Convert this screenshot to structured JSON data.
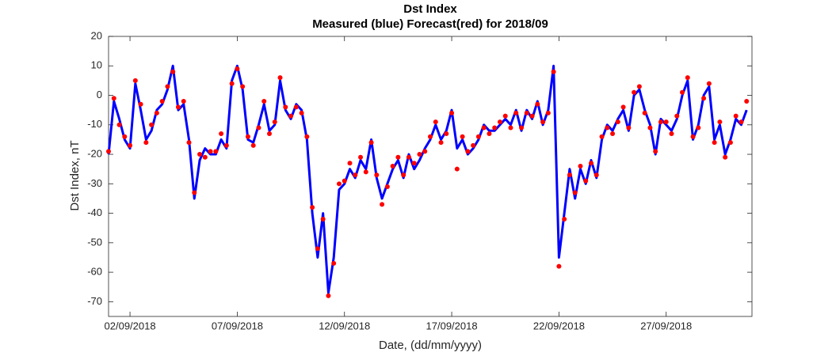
{
  "chart_data": {
    "type": "line",
    "title": "Dst Index",
    "subtitle": "Measured (blue) Forecast(red) for 2018/09",
    "ylabel": "Dst Index, nT",
    "xlabel": "Date, (dd/mm/yyyy)",
    "xlim": [
      1,
      31
    ],
    "ylim": [
      -75,
      20
    ],
    "yticks": [
      -70,
      -60,
      -50,
      -40,
      -30,
      -20,
      -10,
      0,
      10,
      20
    ],
    "xticks": [
      {
        "value": 2,
        "label": "02/09/2018"
      },
      {
        "value": 7,
        "label": "07/09/2018"
      },
      {
        "value": 12,
        "label": "12/09/2018"
      },
      {
        "value": 17,
        "label": "17/09/2018"
      },
      {
        "value": 22,
        "label": "22/09/2018"
      },
      {
        "value": 27,
        "label": "27/09/2018"
      }
    ],
    "x": [
      1,
      1.25,
      1.5,
      1.75,
      2,
      2.25,
      2.5,
      2.75,
      3,
      3.25,
      3.5,
      3.75,
      4,
      4.25,
      4.5,
      4.75,
      5,
      5.25,
      5.5,
      5.75,
      6,
      6.25,
      6.5,
      6.75,
      7,
      7.25,
      7.5,
      7.75,
      8,
      8.25,
      8.5,
      8.75,
      9,
      9.25,
      9.5,
      9.75,
      10,
      10.25,
      10.5,
      10.75,
      11,
      11.25,
      11.5,
      11.75,
      12,
      12.25,
      12.5,
      12.75,
      13,
      13.25,
      13.5,
      13.75,
      14,
      14.25,
      14.5,
      14.75,
      15,
      15.25,
      15.5,
      15.75,
      16,
      16.25,
      16.5,
      16.75,
      17,
      17.25,
      17.5,
      17.75,
      18,
      18.25,
      18.5,
      18.75,
      19,
      19.25,
      19.5,
      19.75,
      20,
      20.25,
      20.5,
      20.75,
      21,
      21.25,
      21.5,
      21.75,
      22,
      22.25,
      22.5,
      22.75,
      23,
      23.25,
      23.5,
      23.75,
      24,
      24.25,
      24.5,
      24.75,
      25,
      25.25,
      25.5,
      25.75,
      26,
      26.25,
      26.5,
      26.75,
      27,
      27.25,
      27.5,
      27.75,
      28,
      28.25,
      28.5,
      28.75,
      29,
      29.25,
      29.5,
      29.75,
      30,
      30.25,
      30.5,
      30.75
    ],
    "series": [
      {
        "name": "Measured",
        "color": "#0000ff",
        "style": "line",
        "values": [
          -20,
          -2,
          -8,
          -15,
          -18,
          4,
          -5,
          -15,
          -12,
          -5,
          -3,
          2,
          10,
          -5,
          -3,
          -15,
          -35,
          -22,
          -18,
          -20,
          -20,
          -15,
          -18,
          5,
          10,
          2,
          -15,
          -16,
          -10,
          -3,
          -12,
          -10,
          5,
          -5,
          -8,
          -3,
          -5,
          -15,
          -40,
          -55,
          -40,
          -67,
          -55,
          -32,
          -30,
          -25,
          -28,
          -22,
          -25,
          -15,
          -28,
          -35,
          -30,
          -25,
          -22,
          -28,
          -20,
          -25,
          -22,
          -18,
          -15,
          -10,
          -15,
          -12,
          -5,
          -18,
          -15,
          -20,
          -18,
          -15,
          -10,
          -12,
          -12,
          -10,
          -8,
          -10,
          -5,
          -12,
          -5,
          -8,
          -2,
          -10,
          -5,
          10,
          -55,
          -40,
          -25,
          -35,
          -25,
          -30,
          -22,
          -28,
          -15,
          -10,
          -12,
          -8,
          -5,
          -12,
          0,
          2,
          -5,
          -10,
          -20,
          -8,
          -10,
          -12,
          -8,
          0,
          5,
          -15,
          -10,
          0,
          3,
          -15,
          -10,
          -20,
          -15,
          -8,
          -10,
          -5
        ]
      },
      {
        "name": "Forecast",
        "color": "#ff0000",
        "style": "dots",
        "values": [
          -19,
          -1,
          -10,
          -14,
          -17,
          5,
          -3,
          -16,
          -10,
          -6,
          -2,
          3,
          8,
          -4,
          -2,
          -16,
          -33,
          -20,
          -21,
          -19,
          -19,
          -13,
          -17,
          4,
          9,
          3,
          -14,
          -17,
          -11,
          -2,
          -13,
          -9,
          6,
          -4,
          -7,
          -4,
          -6,
          -14,
          -38,
          -52,
          -42,
          -68,
          -57,
          -30,
          -29,
          -23,
          -27,
          -21,
          -26,
          -16,
          -27,
          -37,
          -31,
          -24,
          -21,
          -27,
          -21,
          -23,
          -20,
          -19,
          -14,
          -9,
          -16,
          -13,
          -6,
          -25,
          -14,
          -19,
          -17,
          -14,
          -11,
          -13,
          -11,
          -9,
          -7,
          -11,
          -6,
          -11,
          -6,
          -7,
          -3,
          -9,
          -6,
          8,
          -58,
          -42,
          -27,
          -33,
          -24,
          -29,
          -23,
          -27,
          -14,
          -11,
          -13,
          -9,
          -4,
          -11,
          1,
          3,
          -6,
          -11,
          -19,
          -9,
          -9,
          -13,
          -7,
          1,
          6,
          -14,
          -11,
          -1,
          4,
          -16,
          -9,
          -21,
          -16,
          -7,
          -9,
          -2
        ]
      }
    ]
  }
}
